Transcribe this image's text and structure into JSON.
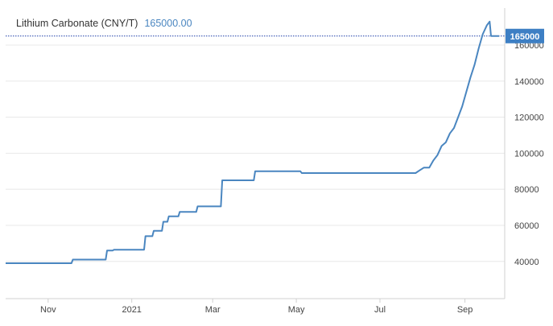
{
  "legend": {
    "series_label": "Lithium Carbonate (CNY/T)",
    "last_value": "165000.00"
  },
  "price_tag": "165000",
  "colors": {
    "line": "#4a86c0",
    "tag_bg": "#3d7fc4",
    "grid": "#e8e8e8",
    "axis": "#d0d0d0",
    "dotted": "#1f3fa8"
  },
  "chart_data": {
    "type": "line",
    "title": "",
    "xlabel": "",
    "ylabel": "",
    "y_axis_side": "right",
    "ylim": [
      22000,
      180000
    ],
    "yticks": [
      40000,
      60000,
      80000,
      100000,
      120000,
      140000,
      160000
    ],
    "x_ticks": [
      {
        "label": "Nov",
        "date": "2020-11-01"
      },
      {
        "label": "2021",
        "date": "2021-01-01"
      },
      {
        "label": "Mar",
        "date": "2021-03-01"
      },
      {
        "label": "May",
        "date": "2021-05-01"
      },
      {
        "label": "Jul",
        "date": "2021-07-01"
      },
      {
        "label": "Sep",
        "date": "2021-09-01"
      }
    ],
    "xlim": [
      "2020-10-01",
      "2021-09-30"
    ],
    "current_value": 165000,
    "series": [
      {
        "name": "Lithium Carbonate (CNY/T)",
        "points": [
          [
            "2020-10-01",
            39000
          ],
          [
            "2020-11-18",
            39000
          ],
          [
            "2020-11-19",
            41000
          ],
          [
            "2020-12-13",
            41000
          ],
          [
            "2020-12-14",
            46000
          ],
          [
            "2020-12-18",
            46000
          ],
          [
            "2020-12-19",
            46500
          ],
          [
            "2021-01-10",
            46500
          ],
          [
            "2021-01-11",
            54000
          ],
          [
            "2021-01-16",
            54000
          ],
          [
            "2021-01-17",
            57000
          ],
          [
            "2021-01-23",
            57000
          ],
          [
            "2021-01-24",
            62000
          ],
          [
            "2021-01-27",
            62000
          ],
          [
            "2021-01-28",
            65000
          ],
          [
            "2021-02-04",
            65000
          ],
          [
            "2021-02-05",
            67500
          ],
          [
            "2021-02-17",
            67500
          ],
          [
            "2021-02-18",
            70500
          ],
          [
            "2021-03-07",
            70500
          ],
          [
            "2021-03-08",
            85000
          ],
          [
            "2021-03-31",
            85000
          ],
          [
            "2021-04-01",
            90000
          ],
          [
            "2021-05-04",
            90000
          ],
          [
            "2021-05-05",
            89000
          ],
          [
            "2021-07-27",
            89000
          ],
          [
            "2021-07-30",
            90500
          ],
          [
            "2021-08-02",
            92000
          ],
          [
            "2021-08-06",
            92000
          ],
          [
            "2021-08-09",
            96000
          ],
          [
            "2021-08-12",
            99000
          ],
          [
            "2021-08-15",
            104000
          ],
          [
            "2021-08-18",
            106000
          ],
          [
            "2021-08-21",
            111000
          ],
          [
            "2021-08-24",
            114000
          ],
          [
            "2021-08-27",
            120000
          ],
          [
            "2021-08-30",
            126000
          ],
          [
            "2021-09-02",
            134000
          ],
          [
            "2021-09-05",
            142000
          ],
          [
            "2021-09-08",
            149000
          ],
          [
            "2021-09-11",
            158000
          ],
          [
            "2021-09-14",
            166000
          ],
          [
            "2021-09-17",
            171000
          ],
          [
            "2021-09-19",
            173000
          ],
          [
            "2021-09-20",
            165000
          ],
          [
            "2021-09-26",
            165000
          ]
        ]
      }
    ]
  }
}
